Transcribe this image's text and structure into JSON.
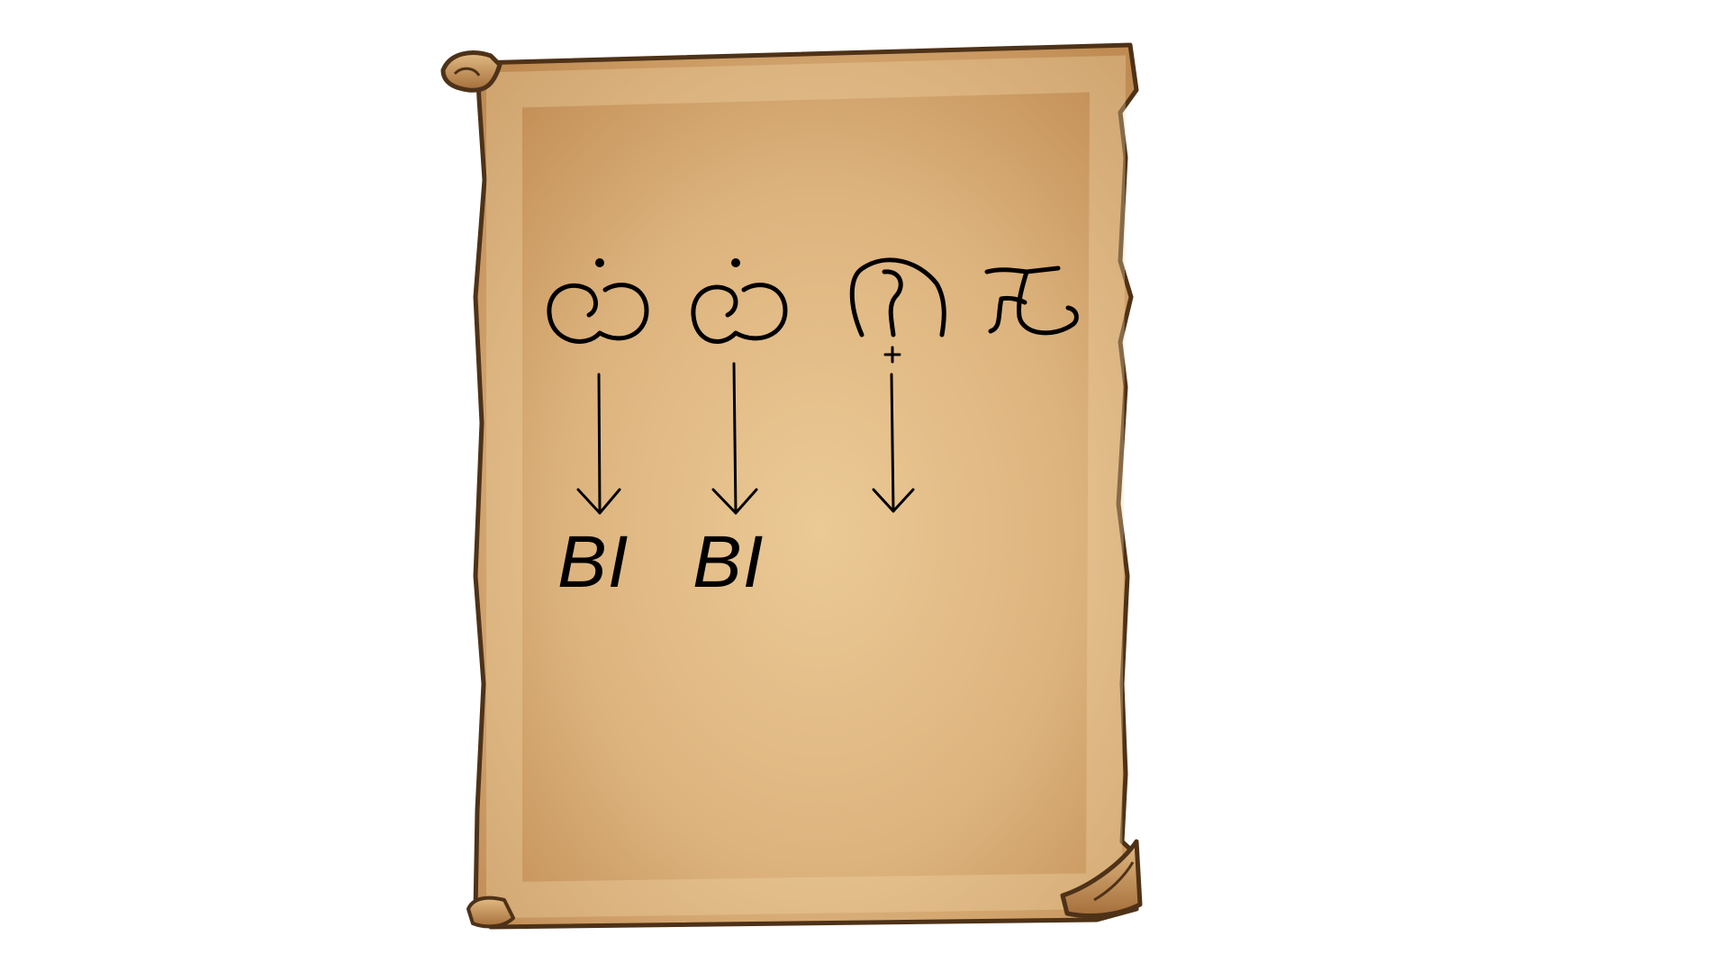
{
  "colors": {
    "background": "#ffffff",
    "parchment_light": "#e8c48f",
    "parchment_mid": "#d4a570",
    "parchment_edge": "#a8763f",
    "parchment_outline": "#5a3a1c",
    "ink": "#000000"
  },
  "scroll": {
    "glyphs": [
      {
        "name": "baybayin-bi-glyph-1"
      },
      {
        "name": "baybayin-bi-glyph-2"
      },
      {
        "name": "baybayin-glyph-3"
      },
      {
        "name": "baybayin-glyph-4"
      }
    ],
    "labels": [
      {
        "text": "BI"
      },
      {
        "text": "BI"
      }
    ]
  }
}
